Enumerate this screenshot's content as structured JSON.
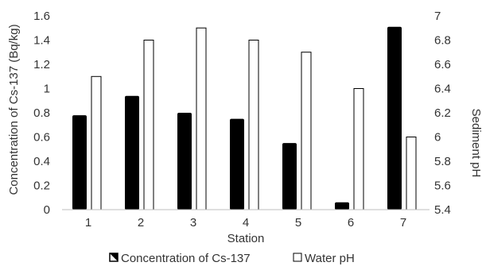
{
  "chart_data": {
    "type": "bar",
    "xlabel": "Station",
    "ylabel_left": "Concentration of Cs-137 (Bq/kg)",
    "ylabel_right": "Sediment pH",
    "categories": [
      "1",
      "2",
      "3",
      "4",
      "5",
      "6",
      "7"
    ],
    "ylim_left": [
      0,
      1.6
    ],
    "ylim_right": [
      5.4,
      7.0
    ],
    "yticks_left": [
      "0",
      "0.2",
      "0.4",
      "0.6",
      "0.8",
      "1",
      "1.2",
      "1.4",
      "1.6"
    ],
    "yticks_right": [
      "5.4",
      "5.6",
      "5.8",
      "6",
      "6.2",
      "6.4",
      "6.6",
      "6.8",
      "7"
    ],
    "grid": false,
    "legend_position": "bottom",
    "series": [
      {
        "name": "Concentration of Cs-137",
        "axis": "left",
        "color": "#000000",
        "values": [
          0.78,
          0.94,
          0.8,
          0.75,
          0.55,
          0.06,
          1.51
        ]
      },
      {
        "name": "Water pH",
        "axis": "right",
        "color": "#ffffff",
        "values": [
          6.5,
          6.8,
          6.9,
          6.8,
          6.7,
          6.4,
          6.0
        ]
      }
    ]
  }
}
